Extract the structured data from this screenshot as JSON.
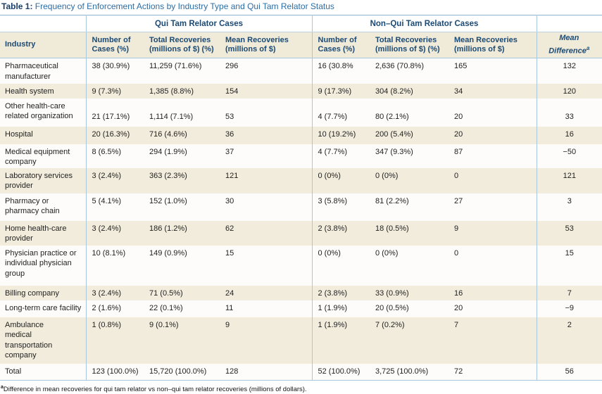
{
  "title": {
    "label": "Table 1:",
    "text": " Frequency of Enforcement Actions by Industry Type and Qui Tam Relator Status"
  },
  "table": {
    "groups": {
      "qui_tam": "Qui Tam Relator Cases",
      "non_qui_tam": "Non–Qui Tam Relator Cases"
    },
    "columns": {
      "industry": "Industry",
      "number_of_cases": "Number of\nCases (%)",
      "total_recoveries": "Total Recoveries\n(millions of $) (%)",
      "mean_recoveries": "Mean Recoveries\n(millions of $)",
      "mean_difference": "Mean\nDifference",
      "mean_difference_sup": "a"
    },
    "rows": [
      {
        "industry": "Pharmaceutical\nmanufacturer",
        "qt_cases": "38 (30.9%)",
        "qt_total": "11,259 (71.6%)",
        "qt_mean": "296",
        "nqt_cases": "16 (30.8%",
        "nqt_total": "2,636 (70.8%)",
        "nqt_mean": "165",
        "diff": "132"
      },
      {
        "industry": "Health system",
        "qt_cases": "9 (7.3%)",
        "qt_total": "1,385 (8.8%)",
        "qt_mean": "154",
        "nqt_cases": "9 (17.3%)",
        "nqt_total": "304 (8.2%)",
        "nqt_mean": "34",
        "diff": "120"
      },
      {
        "industry": "Other health-care\nrelated organization",
        "qt_cases": "21 (17.1%)",
        "qt_total": "1,114 (7.1%)",
        "qt_mean": "53",
        "nqt_cases": "4 (7.7%)",
        "nqt_total": "80 (2.1%)",
        "nqt_mean": "20",
        "diff": "33"
      },
      {
        "industry": "Hospital",
        "qt_cases": "20 (16.3%)",
        "qt_total": "716 (4.6%)",
        "qt_mean": "36",
        "nqt_cases": "10 (19.2%)",
        "nqt_total": "200 (5.4%)",
        "nqt_mean": "20",
        "diff": "16"
      },
      {
        "industry": "Medical equipment\ncompany",
        "qt_cases": "8 (6.5%)",
        "qt_total": "294 (1.9%)",
        "qt_mean": "37",
        "nqt_cases": "4 (7.7%)",
        "nqt_total": "347 (9.3%)",
        "nqt_mean": "87",
        "diff": "−50"
      },
      {
        "industry": "Laboratory services\nprovider",
        "qt_cases": "3 (2.4%)",
        "qt_total": "363 (2.3%)",
        "qt_mean": "121",
        "nqt_cases": "0 (0%)",
        "nqt_total": "0 (0%)",
        "nqt_mean": "0",
        "diff": "121"
      },
      {
        "industry": "Pharmacy or\npharmacy chain",
        "qt_cases": "5 (4.1%)",
        "qt_total": "152 (1.0%)",
        "qt_mean": "30",
        "nqt_cases": "3 (5.8%)",
        "nqt_total": "81 (2.2%)",
        "nqt_mean": "27",
        "diff": "3"
      },
      {
        "industry": "Home health-care\nprovider",
        "qt_cases": "3 (2.4%)",
        "qt_total": "186 (1.2%)",
        "qt_mean": "62",
        "nqt_cases": "2 (3.8%)",
        "nqt_total": "18 (0.5%)",
        "nqt_mean": "9",
        "diff": "53"
      },
      {
        "industry": "Physician practice or\nindividual physician\ngroup",
        "qt_cases": "10 (8.1%)",
        "qt_total": "149 (0.9%)",
        "qt_mean": "15",
        "nqt_cases": "0 (0%)",
        "nqt_total": "0 (0%)",
        "nqt_mean": "0",
        "diff": "15"
      },
      {
        "industry": "Billing company",
        "qt_cases": "3 (2.4%)",
        "qt_total": "71 (0.5%)",
        "qt_mean": "24",
        "nqt_cases": "2 (3.8%)",
        "nqt_total": "33 (0.9%)",
        "nqt_mean": "16",
        "diff": "7"
      },
      {
        "industry": "Long-term care facility",
        "qt_cases": "2 (1.6%)",
        "qt_total": "22 (0.1%)",
        "qt_mean": "11",
        "nqt_cases": "1 (1.9%)",
        "nqt_total": "20 (0.5%)",
        "nqt_mean": "20",
        "diff": "−9"
      },
      {
        "industry": "Ambulance\nmedical\ntransportation\ncompany",
        "qt_cases": "1 (0.8%)",
        "qt_total": "9 (0.1%)",
        "qt_mean": "9",
        "nqt_cases": "1 (1.9%)",
        "nqt_total": "7 (0.2%)",
        "nqt_mean": "7",
        "diff": "2"
      },
      {
        "industry": "Total",
        "qt_cases": "123 (100.0%)",
        "qt_total": "15,720 (100.0%)",
        "qt_mean": "128",
        "nqt_cases": "52 (100.0%)",
        "nqt_total": "3,725 (100.0%)",
        "nqt_mean": "72",
        "diff": "56"
      }
    ]
  },
  "footnote": {
    "sup": "a",
    "text": "Difference in mean recoveries for qui tam relator vs non–qui tam relator recoveries (millions of dollars)."
  },
  "colors": {
    "title_label": "#1b3f68",
    "title_text": "#2c6da4",
    "header_text": "#1b4a74",
    "row_beige": "#f2ecdd",
    "row_white": "#fdfcfa",
    "header_beige": "#f0ead9",
    "divider_blue": "#a8c7da"
  }
}
